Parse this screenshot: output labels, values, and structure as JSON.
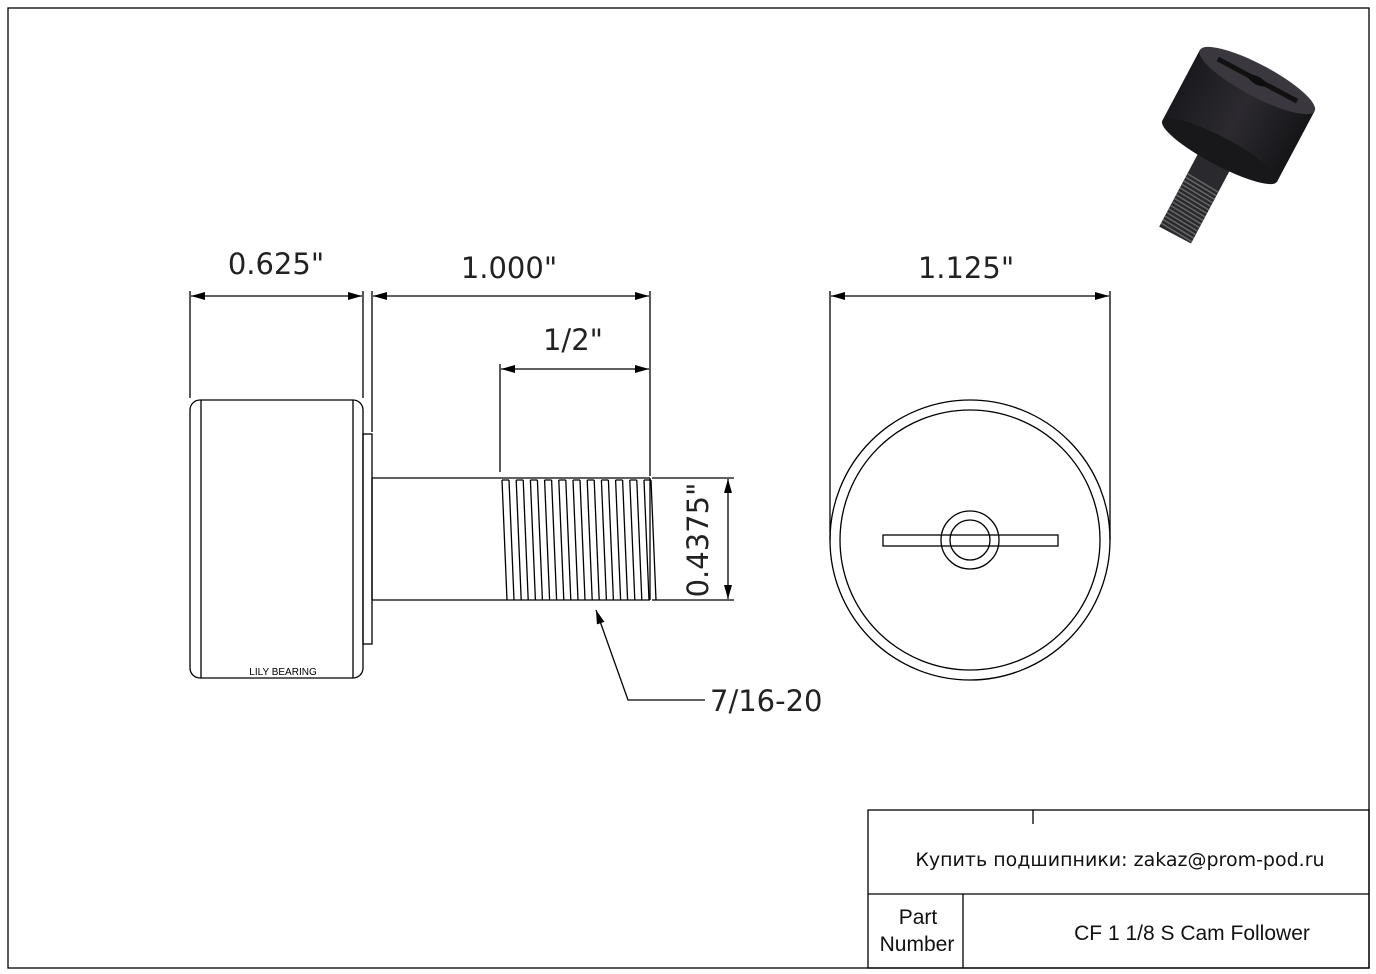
{
  "drawing": {
    "dimensions": {
      "roller_width": "0.625\"",
      "stud_length": "1.000\"",
      "thread_length": "1/2\"",
      "stud_diameter": "0.4375\"",
      "thread_spec": "7/16-20",
      "roller_diameter": "1.125\""
    },
    "roller_marking": "LILY BEARING",
    "product_image": "cam-follower-3d-render"
  },
  "title_block": {
    "contact": "Купить подшипники: zakaz@prom-pod.ru",
    "part_label_line1": "Part",
    "part_label_line2": "Number",
    "part_number": "CF 1 1/8 S Cam Follower"
  }
}
